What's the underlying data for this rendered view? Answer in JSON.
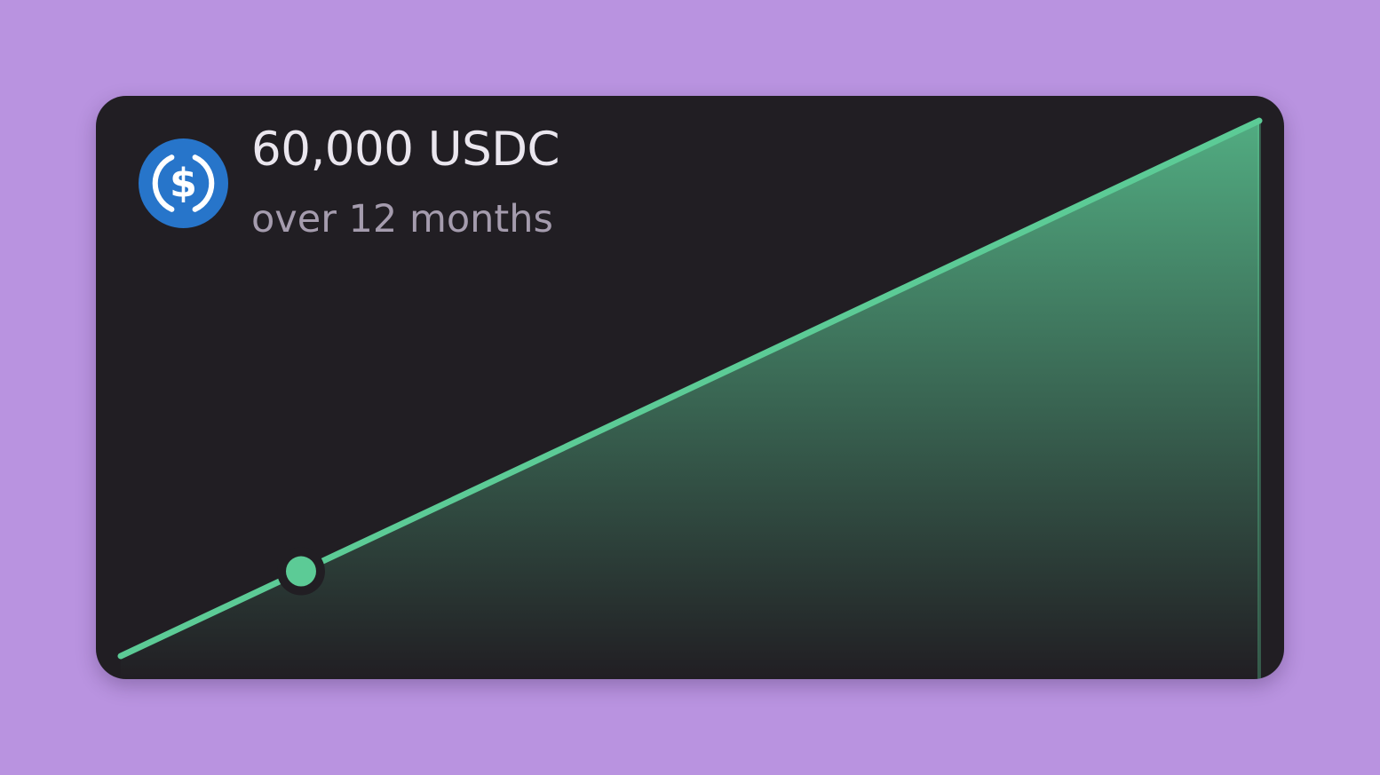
{
  "card": {
    "amount": "60,000 USDC",
    "period": "over 12 months",
    "token_icon": "usdc-coin-icon",
    "token_color": "#2775ca",
    "accent_color": "#5ccb96",
    "background_color": "#211e23",
    "page_background": "#b993e0"
  },
  "chart_data": {
    "type": "area",
    "x": [
      0,
      12
    ],
    "y": [
      0,
      60000
    ],
    "xlim": [
      0,
      12
    ],
    "ylim": [
      0,
      60000
    ],
    "grid": false,
    "current_point": {
      "x": 1.9,
      "y": 9500
    },
    "title": "",
    "xlabel": "",
    "ylabel": ""
  }
}
